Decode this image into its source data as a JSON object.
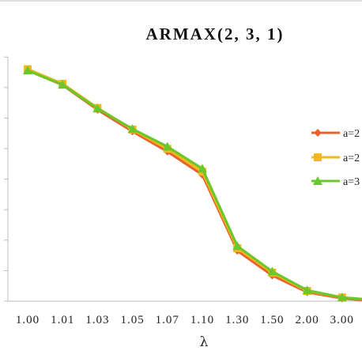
{
  "chart_data": {
    "type": "line",
    "title": "ARMAX(2, 3, 1)",
    "xlabel": "λ",
    "ylabel": "",
    "categories": [
      "1.00",
      "1.01",
      "1.03",
      "1.05",
      "1.07",
      "1.10",
      "1.30",
      "1.50",
      "2.00",
      "3.00"
    ],
    "ylim": [
      0,
      1
    ],
    "grid": false,
    "legend_position": "right",
    "series": [
      {
        "name": "a=2",
        "color": "#E8642C",
        "marker": "diamond",
        "values": [
          0.745,
          0.698,
          0.618,
          0.548,
          0.483,
          0.408,
          0.163,
          0.083,
          0.029,
          0.009
        ]
      },
      {
        "name": "a=2",
        "color": "#F2B81C",
        "marker": "square",
        "values": [
          0.749,
          0.702,
          0.624,
          0.554,
          0.492,
          0.418,
          0.171,
          0.092,
          0.033,
          0.012
        ]
      },
      {
        "name": "a=3",
        "color": "#6DC62B",
        "marker": "triangle",
        "values": [
          0.745,
          0.699,
          0.622,
          0.556,
          0.499,
          0.428,
          0.178,
          0.096,
          0.035,
          0.012
        ]
      }
    ]
  }
}
